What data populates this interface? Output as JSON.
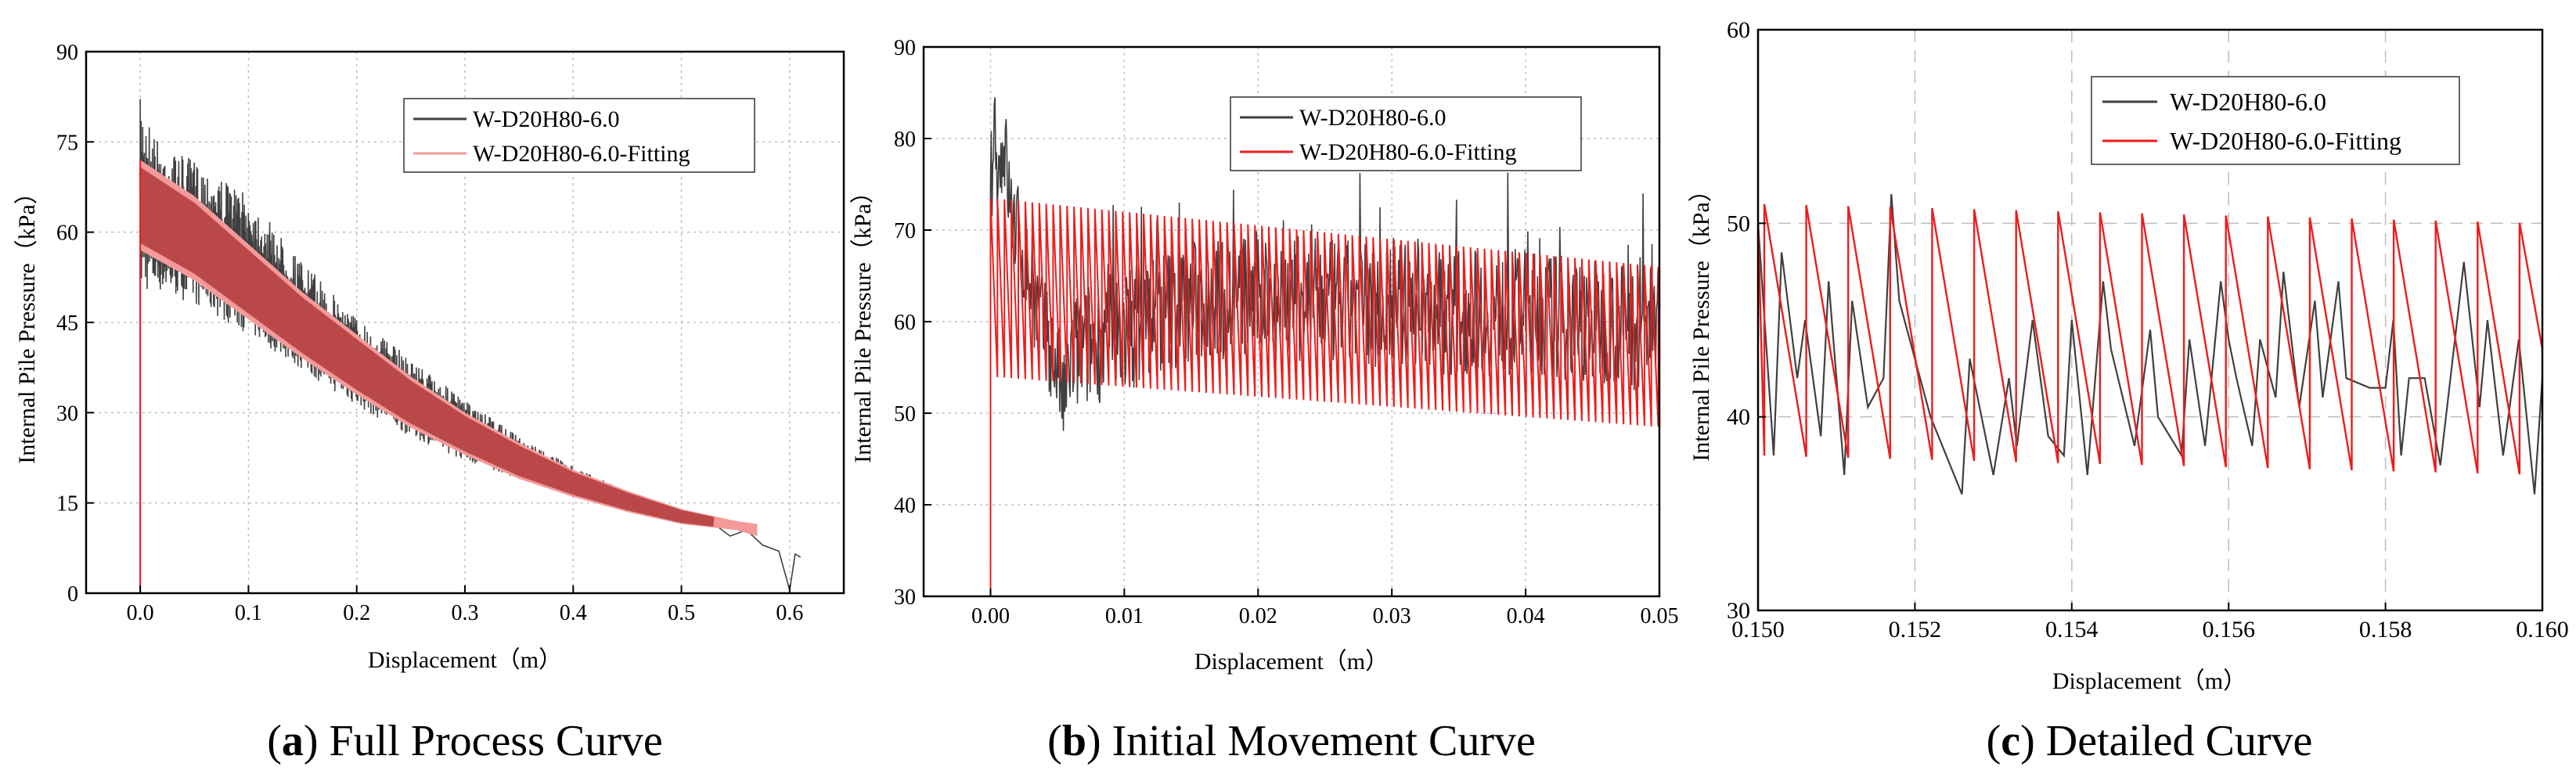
{
  "colors": {
    "measured": "#404040",
    "fit_a": "#f59a9a",
    "fit_band_a": "#b03a3a",
    "fit_bc": "#ee1c1c",
    "grid": "#bdbdbd",
    "axis": "#000000"
  },
  "chart_data": [
    {
      "id": "a",
      "type": "line",
      "caption_letter": "a",
      "caption_text": ") Full Process Curve",
      "xlabel": "Displacement（m）",
      "ylabel": "Internal Pile Pressure（kPa）",
      "xlim": [
        -0.05,
        0.65
      ],
      "ylim": [
        0,
        90
      ],
      "xticks": [
        0.0,
        0.1,
        0.2,
        0.3,
        0.4,
        0.5,
        0.6
      ],
      "xtick_labels": [
        "0.0",
        "0.1",
        "0.2",
        "0.3",
        "0.4",
        "0.5",
        "0.6"
      ],
      "yticks": [
        0,
        15,
        30,
        45,
        60,
        75,
        90
      ],
      "ytick_labels": [
        "0",
        "15",
        "30",
        "45",
        "60",
        "75",
        "90"
      ],
      "legend": [
        "W-D20H80-6.0",
        "W-D20H80-6.0-Fitting"
      ],
      "legend_position": "top-right",
      "series": [
        {
          "name": "W-D20H80-6.0",
          "kind": "measured-band",
          "x": [
            0.0,
            0.02,
            0.05,
            0.1,
            0.15,
            0.2,
            0.25,
            0.3,
            0.35,
            0.4,
            0.45,
            0.5,
            0.52,
            0.53
          ],
          "upper": [
            82,
            74,
            72,
            66,
            55,
            46,
            39,
            32,
            26,
            21,
            17,
            14,
            12.5,
            12
          ],
          "lower": [
            50,
            50,
            48,
            43,
            37,
            31,
            26,
            22,
            19,
            16.5,
            14.5,
            12.5,
            11.5,
            11
          ],
          "tail_x": [
            0.53,
            0.545,
            0.56,
            0.575,
            0.59,
            0.6,
            0.605,
            0.61
          ],
          "tail_y": [
            11.5,
            9.5,
            10.5,
            8.0,
            7.0,
            0.5,
            6.5,
            6.0
          ]
        },
        {
          "name": "W-D20H80-6.0-Fitting",
          "kind": "fit-band",
          "x": [
            0.0,
            0.05,
            0.1,
            0.15,
            0.2,
            0.25,
            0.3,
            0.35,
            0.4,
            0.45,
            0.5,
            0.55,
            0.57
          ],
          "upper": [
            72,
            66,
            58,
            50,
            43,
            36,
            30,
            25,
            20.5,
            17,
            14,
            12,
            11.5
          ],
          "lower": [
            57,
            52,
            45.5,
            39,
            33,
            27.5,
            23,
            19,
            16,
            13.5,
            11.5,
            10.5,
            9.5
          ]
        }
      ]
    },
    {
      "id": "b",
      "type": "line",
      "caption_letter": "b",
      "caption_text": ") Initial Movement Curve",
      "xlabel": "Displacement（m）",
      "ylabel": "Internal Pile Pressure（kPa）",
      "xlim": [
        -0.005,
        0.05
      ],
      "ylim": [
        30,
        90
      ],
      "xticks": [
        0.0,
        0.01,
        0.02,
        0.03,
        0.04,
        0.05
      ],
      "xtick_labels": [
        "0.00",
        "0.01",
        "0.02",
        "0.03",
        "0.04",
        "0.05"
      ],
      "yticks": [
        30,
        40,
        50,
        60,
        70,
        80,
        90
      ],
      "ytick_labels": [
        "30",
        "40",
        "50",
        "60",
        "70",
        "80",
        "90"
      ],
      "legend": [
        "W-D20H80-6.0",
        "W-D20H80-6.0-Fitting"
      ],
      "legend_position": "top-right",
      "series": [
        {
          "name": "W-D20H80-6.0",
          "kind": "measured",
          "x": [
            0.0,
            0.0003,
            0.0006,
            0.001,
            0.0015,
            0.002,
            0.003,
            0.004,
            0.005,
            0.0055,
            0.006,
            0.008,
            0.01,
            0.012,
            0.015,
            0.02,
            0.025,
            0.03,
            0.035,
            0.04,
            0.045,
            0.05
          ],
          "y": [
            74,
            82,
            76,
            80,
            72,
            70,
            64,
            59,
            55,
            51,
            56,
            58,
            59,
            61,
            62,
            63,
            62,
            62,
            61,
            61,
            60,
            59
          ],
          "amplitude": 7
        },
        {
          "name": "W-D20H80-6.0-Fitting",
          "kind": "sawtooth",
          "x_start": 0.0,
          "x_end": 0.05,
          "period": 0.00052,
          "upper_start": 73.5,
          "upper_end": 66,
          "lower_start": 54,
          "lower_end": 48.5
        }
      ]
    },
    {
      "id": "c",
      "type": "line",
      "caption_letter": "c",
      "caption_text": ") Detailed Curve",
      "xlabel": "Displacement（m）",
      "ylabel": "Internal Pile Pressure（kPa）",
      "xlim": [
        0.15,
        0.16
      ],
      "ylim": [
        30,
        60
      ],
      "xticks": [
        0.15,
        0.152,
        0.154,
        0.156,
        0.158,
        0.16
      ],
      "xtick_labels": [
        "0.150",
        "0.152",
        "0.154",
        "0.156",
        "0.158",
        "0.160"
      ],
      "yticks": [
        30,
        40,
        50,
        60
      ],
      "ytick_labels": [
        "30",
        "40",
        "50",
        "60"
      ],
      "legend": [
        "W-D20H80-6.0",
        "W-D20H80-6.0-Fitting"
      ],
      "legend_position": "top-left",
      "series": [
        {
          "name": "W-D20H80-6.0",
          "kind": "measured",
          "x": [
            0.15,
            0.1502,
            0.1503,
            0.1505,
            0.1506,
            0.1508,
            0.1509,
            0.1511,
            0.1512,
            0.1514,
            0.1516,
            0.1517,
            0.1518,
            0.1522,
            0.1526,
            0.1527,
            0.153,
            0.1532,
            0.1533,
            0.1535,
            0.1537,
            0.1539,
            0.154,
            0.1542,
            0.1544,
            0.1545,
            0.1548,
            0.155,
            0.1551,
            0.1554,
            0.1555,
            0.1557,
            0.1559,
            0.156,
            0.1561,
            0.1563,
            0.1564,
            0.1566,
            0.1567,
            0.1569,
            0.1571,
            0.1572,
            0.1574,
            0.1575,
            0.1578,
            0.158,
            0.1581,
            0.1582,
            0.1583,
            0.1585,
            0.1587,
            0.159,
            0.1592,
            0.1593,
            0.1595,
            0.1597,
            0.1599,
            0.16
          ],
          "y": [
            50,
            38,
            48.5,
            42,
            45,
            39,
            47,
            37,
            46,
            40.5,
            42,
            51.5,
            46,
            40,
            36,
            43,
            37,
            42,
            38.5,
            45,
            39,
            38,
            45,
            37,
            47,
            43.5,
            38.5,
            44.5,
            40,
            38,
            44,
            38.5,
            47,
            44,
            42,
            38.5,
            44,
            41,
            47.5,
            40.5,
            46,
            41,
            47,
            42,
            41.5,
            41.5,
            45,
            38,
            42,
            42,
            37.5,
            48,
            40.5,
            45,
            38,
            44,
            36,
            42
          ],
          "amplitude": 0
        },
        {
          "name": "W-D20H80-6.0-Fitting",
          "kind": "sawtooth",
          "x_start": 0.15,
          "x_end": 0.16,
          "period": 0.000535,
          "upper_start": 51,
          "upper_end": 50,
          "lower_start": 38,
          "lower_end": 37,
          "phase": 8e-05
        }
      ]
    }
  ]
}
